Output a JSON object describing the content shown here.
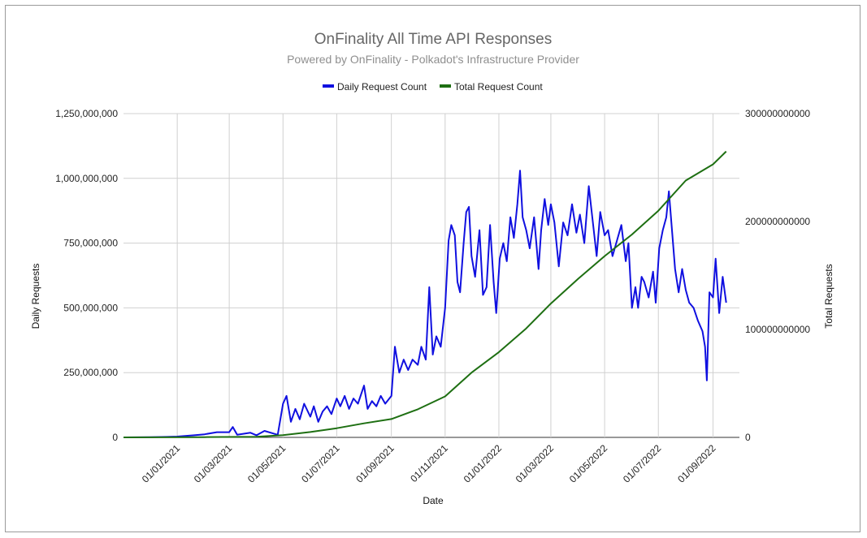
{
  "chart_data": {
    "type": "line",
    "title": "OnFinality All Time API Responses",
    "subtitle": "Powered by OnFinality - Polkadot's Infrastructure Provider",
    "xlabel": "Date",
    "ylabel_left": "Daily Requests",
    "ylabel_right": "Total Requests",
    "x_ticks": [
      "01/01/2021",
      "01/03/2021",
      "01/05/2021",
      "01/07/2021",
      "01/09/2021",
      "01/11/2021",
      "01/01/2022",
      "01/03/2022",
      "01/05/2022",
      "01/07/2022",
      "01/09/2022"
    ],
    "x_range": [
      "2020-11-01",
      "2022-10-01"
    ],
    "y_left_range": [
      0,
      1250000000
    ],
    "y_left_ticks": [
      "0",
      "250,000,000",
      "500,000,000",
      "750,000,000",
      "1,000,000,000",
      "1,250,000,000"
    ],
    "y_right_range": [
      0,
      300000000000
    ],
    "y_right_ticks": [
      "0",
      "100000000000",
      "200000000000",
      "300000000000"
    ],
    "grid": true,
    "legend_position": "top",
    "series": [
      {
        "name": "Daily Request Count",
        "axis": "left",
        "color": "#1010e0",
        "points": [
          [
            "2020-11-01",
            0
          ],
          [
            "2020-12-01",
            1000000
          ],
          [
            "2020-12-20",
            2000000
          ],
          [
            "2021-01-01",
            3000000
          ],
          [
            "2021-01-20",
            8000000
          ],
          [
            "2021-02-01",
            12000000
          ],
          [
            "2021-02-15",
            20000000
          ],
          [
            "2021-03-01",
            20000000
          ],
          [
            "2021-03-05",
            40000000
          ],
          [
            "2021-03-10",
            10000000
          ],
          [
            "2021-03-25",
            18000000
          ],
          [
            "2021-04-01",
            8000000
          ],
          [
            "2021-04-10",
            25000000
          ],
          [
            "2021-04-20",
            15000000
          ],
          [
            "2021-04-25",
            10000000
          ],
          [
            "2021-05-01",
            130000000
          ],
          [
            "2021-05-05",
            160000000
          ],
          [
            "2021-05-10",
            60000000
          ],
          [
            "2021-05-15",
            110000000
          ],
          [
            "2021-05-20",
            70000000
          ],
          [
            "2021-05-25",
            130000000
          ],
          [
            "2021-06-01",
            80000000
          ],
          [
            "2021-06-05",
            120000000
          ],
          [
            "2021-06-10",
            60000000
          ],
          [
            "2021-06-15",
            100000000
          ],
          [
            "2021-06-20",
            120000000
          ],
          [
            "2021-06-25",
            90000000
          ],
          [
            "2021-07-01",
            150000000
          ],
          [
            "2021-07-05",
            120000000
          ],
          [
            "2021-07-10",
            160000000
          ],
          [
            "2021-07-15",
            110000000
          ],
          [
            "2021-07-20",
            150000000
          ],
          [
            "2021-07-25",
            130000000
          ],
          [
            "2021-08-01",
            200000000
          ],
          [
            "2021-08-05",
            110000000
          ],
          [
            "2021-08-10",
            140000000
          ],
          [
            "2021-08-15",
            120000000
          ],
          [
            "2021-08-20",
            160000000
          ],
          [
            "2021-08-25",
            130000000
          ],
          [
            "2021-09-01",
            160000000
          ],
          [
            "2021-09-05",
            350000000
          ],
          [
            "2021-09-10",
            250000000
          ],
          [
            "2021-09-15",
            300000000
          ],
          [
            "2021-09-20",
            260000000
          ],
          [
            "2021-09-25",
            300000000
          ],
          [
            "2021-10-01",
            280000000
          ],
          [
            "2021-10-05",
            350000000
          ],
          [
            "2021-10-10",
            300000000
          ],
          [
            "2021-10-14",
            580000000
          ],
          [
            "2021-10-18",
            320000000
          ],
          [
            "2021-10-22",
            390000000
          ],
          [
            "2021-10-27",
            350000000
          ],
          [
            "2021-11-01",
            500000000
          ],
          [
            "2021-11-05",
            760000000
          ],
          [
            "2021-11-08",
            820000000
          ],
          [
            "2021-11-12",
            780000000
          ],
          [
            "2021-11-15",
            600000000
          ],
          [
            "2021-11-18",
            560000000
          ],
          [
            "2021-11-22",
            750000000
          ],
          [
            "2021-11-25",
            870000000
          ],
          [
            "2021-11-28",
            890000000
          ],
          [
            "2021-12-01",
            700000000
          ],
          [
            "2021-12-05",
            620000000
          ],
          [
            "2021-12-10",
            800000000
          ],
          [
            "2021-12-14",
            550000000
          ],
          [
            "2021-12-18",
            580000000
          ],
          [
            "2021-12-22",
            820000000
          ],
          [
            "2021-12-26",
            600000000
          ],
          [
            "2021-12-29",
            480000000
          ],
          [
            "2022-01-02",
            690000000
          ],
          [
            "2022-01-06",
            750000000
          ],
          [
            "2022-01-10",
            680000000
          ],
          [
            "2022-01-14",
            850000000
          ],
          [
            "2022-01-18",
            770000000
          ],
          [
            "2022-01-22",
            900000000
          ],
          [
            "2022-01-25",
            1030000000
          ],
          [
            "2022-01-28",
            850000000
          ],
          [
            "2022-02-01",
            800000000
          ],
          [
            "2022-02-05",
            730000000
          ],
          [
            "2022-02-10",
            850000000
          ],
          [
            "2022-02-15",
            650000000
          ],
          [
            "2022-02-18",
            800000000
          ],
          [
            "2022-02-22",
            920000000
          ],
          [
            "2022-02-26",
            820000000
          ],
          [
            "2022-03-01",
            900000000
          ],
          [
            "2022-03-05",
            830000000
          ],
          [
            "2022-03-10",
            660000000
          ],
          [
            "2022-03-15",
            830000000
          ],
          [
            "2022-03-20",
            780000000
          ],
          [
            "2022-03-25",
            900000000
          ],
          [
            "2022-03-30",
            790000000
          ],
          [
            "2022-04-03",
            860000000
          ],
          [
            "2022-04-08",
            750000000
          ],
          [
            "2022-04-13",
            970000000
          ],
          [
            "2022-04-18",
            820000000
          ],
          [
            "2022-04-22",
            700000000
          ],
          [
            "2022-04-26",
            870000000
          ],
          [
            "2022-05-01",
            780000000
          ],
          [
            "2022-05-05",
            800000000
          ],
          [
            "2022-05-10",
            700000000
          ],
          [
            "2022-05-15",
            760000000
          ],
          [
            "2022-05-20",
            820000000
          ],
          [
            "2022-05-25",
            680000000
          ],
          [
            "2022-05-28",
            750000000
          ],
          [
            "2022-06-01",
            500000000
          ],
          [
            "2022-06-05",
            580000000
          ],
          [
            "2022-06-08",
            500000000
          ],
          [
            "2022-06-12",
            620000000
          ],
          [
            "2022-06-15",
            600000000
          ],
          [
            "2022-06-20",
            540000000
          ],
          [
            "2022-06-25",
            640000000
          ],
          [
            "2022-06-28",
            520000000
          ],
          [
            "2022-07-02",
            730000000
          ],
          [
            "2022-07-06",
            800000000
          ],
          [
            "2022-07-10",
            850000000
          ],
          [
            "2022-07-13",
            950000000
          ],
          [
            "2022-07-16",
            820000000
          ],
          [
            "2022-07-20",
            650000000
          ],
          [
            "2022-07-24",
            560000000
          ],
          [
            "2022-07-28",
            650000000
          ],
          [
            "2022-08-01",
            570000000
          ],
          [
            "2022-08-05",
            520000000
          ],
          [
            "2022-08-10",
            500000000
          ],
          [
            "2022-08-15",
            450000000
          ],
          [
            "2022-08-20",
            410000000
          ],
          [
            "2022-08-23",
            350000000
          ],
          [
            "2022-08-25",
            220000000
          ],
          [
            "2022-08-28",
            560000000
          ],
          [
            "2022-09-01",
            540000000
          ],
          [
            "2022-09-04",
            690000000
          ],
          [
            "2022-09-08",
            480000000
          ],
          [
            "2022-09-12",
            620000000
          ],
          [
            "2022-09-16",
            520000000
          ]
        ]
      },
      {
        "name": "Total Request Count",
        "axis": "right",
        "color": "#1e6f12",
        "points": [
          [
            "2020-11-01",
            0
          ],
          [
            "2021-02-01",
            200000000
          ],
          [
            "2021-04-01",
            500000000
          ],
          [
            "2021-05-01",
            2000000000
          ],
          [
            "2021-06-01",
            5000000000
          ],
          [
            "2021-07-01",
            8500000000
          ],
          [
            "2021-08-01",
            13000000000
          ],
          [
            "2021-09-01",
            17000000000
          ],
          [
            "2021-10-01",
            26000000000
          ],
          [
            "2021-11-01",
            38000000000
          ],
          [
            "2021-12-01",
            60000000000
          ],
          [
            "2022-01-01",
            79000000000
          ],
          [
            "2022-02-01",
            101000000000
          ],
          [
            "2022-03-01",
            124000000000
          ],
          [
            "2022-04-01",
            147000000000
          ],
          [
            "2022-05-01",
            168000000000
          ],
          [
            "2022-06-01",
            188000000000
          ],
          [
            "2022-07-01",
            210000000000
          ],
          [
            "2022-08-01",
            238000000000
          ],
          [
            "2022-09-01",
            253000000000
          ],
          [
            "2022-09-16",
            265000000000
          ]
        ]
      }
    ]
  }
}
